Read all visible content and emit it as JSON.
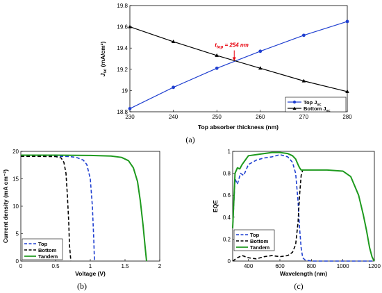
{
  "colors": {
    "blue": "#1f3fd0",
    "black": "#000000",
    "green": "#1e9a1e",
    "red": "#e8000b"
  },
  "chart_data": [
    {
      "type": "line",
      "panel_label": "(a)",
      "xlabel": "Top absorber thickness (nm)",
      "ylabel_main": "J",
      "ylabel_sub": "sc",
      "ylabel_unit": " (mA/cm²)",
      "xlim": [
        230,
        280
      ],
      "ylim": [
        18.8,
        19.8
      ],
      "xticks": [
        "230",
        "240",
        "250",
        "260",
        "270",
        "280"
      ],
      "yticks": [
        "18.8",
        "19",
        "19.2",
        "19.4",
        "19.6",
        "19.8"
      ],
      "series": [
        {
          "name": "Top J_sc",
          "legend_main": "Top J",
          "legend_sub": "sc",
          "color": "#1f3fd0",
          "marker": "circle",
          "x": [
            230,
            240,
            250,
            260,
            270,
            280
          ],
          "y": [
            18.83,
            19.03,
            19.21,
            19.37,
            19.52,
            19.65
          ]
        },
        {
          "name": "Bottom J_sc",
          "legend_main": "Bottom J",
          "legend_sub": "sc",
          "color": "#000000",
          "marker": "triangle",
          "x": [
            230,
            240,
            250,
            260,
            270,
            280
          ],
          "y": [
            19.6,
            19.46,
            19.33,
            19.21,
            19.09,
            18.99
          ]
        }
      ],
      "annotation": {
        "main": "t",
        "sub": "top",
        "rest": " = 254 nm",
        "x": 254,
        "y": 19.28,
        "color": "#e8000b"
      },
      "legend_position": "bottom-right"
    },
    {
      "type": "line",
      "panel_label": "(b)",
      "xlabel": "Voltage (V)",
      "ylabel": "Current density (mA cm⁻²)",
      "xlim": [
        0,
        2
      ],
      "ylim": [
        0,
        20
      ],
      "xticks": [
        "0",
        "0.5",
        "1",
        "1.5",
        "2"
      ],
      "yticks": [
        "0",
        "5",
        "10",
        "15",
        "20"
      ],
      "series": [
        {
          "name": "Top",
          "color": "#1f3fd0",
          "dash": "dashed",
          "x": [
            0,
            0.5,
            0.7,
            0.8,
            0.9,
            0.95,
            1.0,
            1.03,
            1.05,
            1.06
          ],
          "y": [
            19.1,
            19.1,
            19.05,
            18.9,
            18.4,
            17.6,
            15.0,
            10.0,
            4.0,
            0
          ]
        },
        {
          "name": "Bottom",
          "color": "#000000",
          "dash": "dashed",
          "x": [
            0,
            0.5,
            0.58,
            0.62,
            0.65,
            0.67,
            0.69,
            0.7,
            0.72
          ],
          "y": [
            19.1,
            19.05,
            18.8,
            18.0,
            16.0,
            12.0,
            7.0,
            3.0,
            0
          ]
        },
        {
          "name": "Tandem",
          "color": "#1e9a1e",
          "dash": "solid",
          "x": [
            0,
            0.5,
            1.0,
            1.3,
            1.45,
            1.55,
            1.62,
            1.68,
            1.72,
            1.76,
            1.79,
            1.81
          ],
          "y": [
            19.3,
            19.3,
            19.25,
            19.15,
            18.9,
            18.3,
            17.0,
            14.5,
            11.0,
            6.5,
            2.5,
            0
          ]
        }
      ],
      "legend_position": "bottom-left"
    },
    {
      "type": "line",
      "panel_label": "(c)",
      "xlabel": "Wavelength (nm)",
      "ylabel": "EQE",
      "xlim": [
        300,
        1200
      ],
      "ylim": [
        0,
        1
      ],
      "xticks": [
        "400",
        "600",
        "800",
        "1000",
        "1200"
      ],
      "yticks": [
        "0",
        "0.2",
        "0.4",
        "0.6",
        "0.8",
        "1"
      ],
      "series": [
        {
          "name": "Top",
          "color": "#1f3fd0",
          "dash": "dashed",
          "x": [
            300,
            315,
            330,
            350,
            370,
            400,
            450,
            500,
            550,
            600,
            650,
            680,
            700,
            715,
            725,
            735,
            745,
            760,
            800,
            1200
          ],
          "y": [
            0.3,
            0.75,
            0.7,
            0.8,
            0.78,
            0.88,
            0.92,
            0.94,
            0.95,
            0.97,
            0.95,
            0.9,
            0.8,
            0.55,
            0.3,
            0.12,
            0.03,
            0.01,
            0,
            0
          ]
        },
        {
          "name": "Bottom",
          "color": "#000000",
          "dash": "dashed",
          "x": [
            300,
            330,
            360,
            400,
            450,
            500,
            550,
            600,
            650,
            680,
            700,
            715,
            725,
            735,
            745
          ],
          "y": [
            0,
            0.03,
            0.05,
            0.03,
            0.02,
            0.04,
            0.05,
            0.04,
            0.05,
            0.08,
            0.15,
            0.35,
            0.6,
            0.78,
            0.83
          ]
        },
        {
          "name": "Tandem",
          "color": "#1e9a1e",
          "dash": "solid",
          "x": [
            300,
            315,
            330,
            345,
            360,
            380,
            400,
            450,
            500,
            550,
            600,
            650,
            680,
            700,
            715,
            725,
            735,
            745,
            760,
            800,
            900,
            1000,
            1050,
            1100,
            1130,
            1150,
            1170,
            1185,
            1195,
            1200
          ],
          "y": [
            0.3,
            0.8,
            0.85,
            0.84,
            0.88,
            0.92,
            0.96,
            0.97,
            0.98,
            0.99,
            0.99,
            0.98,
            0.96,
            0.93,
            0.88,
            0.85,
            0.83,
            0.83,
            0.83,
            0.83,
            0.83,
            0.82,
            0.77,
            0.6,
            0.42,
            0.28,
            0.12,
            0.04,
            0.01,
            0
          ]
        }
      ],
      "legend_position": "bottom-left"
    }
  ]
}
